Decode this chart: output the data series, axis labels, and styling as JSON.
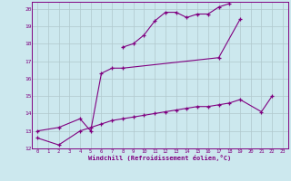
{
  "xlabel": "Windchill (Refroidissement éolien,°C)",
  "bg_color": "#cce8ee",
  "line_color": "#800080",
  "grid_color": "#b0c8cc",
  "ylim": [
    12,
    20.4
  ],
  "xlim": [
    -0.5,
    23.5
  ],
  "yticks": [
    12,
    13,
    14,
    15,
    16,
    17,
    18,
    19,
    20
  ],
  "xticks": [
    0,
    1,
    2,
    3,
    4,
    5,
    6,
    7,
    8,
    9,
    10,
    11,
    12,
    13,
    14,
    15,
    16,
    17,
    18,
    19,
    20,
    21,
    22,
    23
  ],
  "series": [
    {
      "x": [
        0,
        2,
        4,
        5,
        6,
        7,
        8,
        9,
        10,
        11,
        12,
        13,
        14,
        15,
        16,
        17,
        18,
        19,
        21,
        22
      ],
      "y": [
        12.6,
        12.2,
        13.0,
        13.2,
        13.4,
        13.6,
        13.7,
        13.8,
        13.9,
        14.0,
        14.1,
        14.2,
        14.3,
        14.4,
        14.4,
        14.5,
        14.6,
        14.8,
        14.1,
        15.0
      ]
    },
    {
      "x": [
        0,
        2,
        4,
        5,
        6,
        7,
        8,
        17,
        19
      ],
      "y": [
        13.0,
        13.2,
        13.7,
        13.0,
        16.3,
        16.6,
        16.6,
        17.2,
        19.4
      ]
    },
    {
      "x": [
        8,
        9,
        10,
        11,
        12,
        13,
        14,
        15,
        16,
        17,
        18
      ],
      "y": [
        17.8,
        18.0,
        18.5,
        19.3,
        19.8,
        19.8,
        19.5,
        19.7,
        19.7,
        20.1,
        20.3
      ]
    }
  ]
}
